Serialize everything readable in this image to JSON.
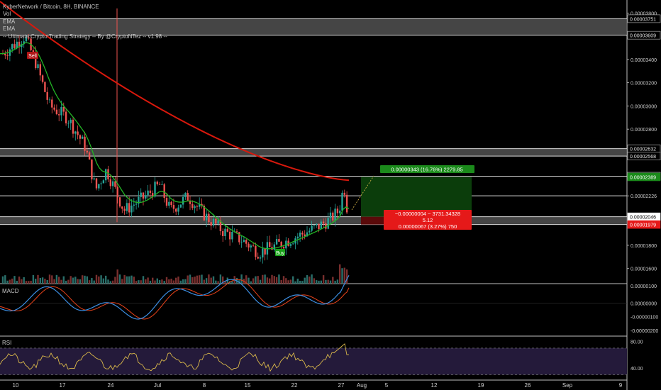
{
  "legend": {
    "symbol_line": "KyberNetwork / Bitcoin, 8H, BINANCE",
    "vol": "Vol",
    "ema1": "EMA",
    "ema2": "EMA",
    "strategy": "-- Ultimate Crypto Trading Strategy -- By @CryptoNTez -- v1.98 --"
  },
  "panes": {
    "macd_label": "MACD",
    "rsi_label": "RSI"
  },
  "colors": {
    "background": "#000000",
    "candle_up": "#26a69a",
    "candle_down": "#ef5350",
    "ema_fast": "#22b525",
    "ema_slow": "#d9180c",
    "macd": "#3c8ee2",
    "signal": "#e8421a",
    "rsi": "#d9b84a",
    "rsi_band": "#241a3a",
    "profit_zone": "#0b3d0b",
    "loss_zone": "#5a0a0a",
    "profit_label_bg": "#1b8a1b",
    "loss_label_bg": "#e51919"
  },
  "chart_data": {
    "type": "candlestick",
    "symbol": "KyberNetwork / Bitcoin",
    "interval": "8H",
    "exchange": "BINANCE",
    "x_ticks": [
      "10",
      "17",
      "24",
      "Jul",
      "8",
      "15",
      "22",
      "27",
      "Aug",
      "5",
      "12",
      "19",
      "26",
      "Sep",
      "9"
    ],
    "price_axis_ticks": [
      "0.00003800",
      "0.00003400",
      "0.00003200",
      "0.00003000",
      "0.00002800",
      "0.00002226",
      "0.00001800",
      "0.00001600"
    ],
    "price_axis_tick_values": [
      3.8e-05,
      3.4e-05,
      3.2e-05,
      3e-05,
      2.8e-05,
      2.226e-05,
      1.8e-05,
      1.6e-05
    ],
    "price_labels": [
      {
        "text": "0.00003751",
        "value": 3.751e-05
      },
      {
        "text": "0.00003609",
        "value": 3.609e-05
      },
      {
        "text": "0.00002632",
        "value": 2.632e-05
      },
      {
        "text": "0.00002568",
        "value": 2.568e-05
      },
      {
        "text": "0.00002395",
        "value": 2.395e-05
      },
      {
        "text": "0.00002389",
        "value": 2.389e-05,
        "highlight": "green"
      },
      {
        "text": "0.00002046",
        "value": 2.046e-05,
        "highlight": "white"
      },
      {
        "text": "0.00001979",
        "value": 1.979e-05,
        "highlight": "red"
      }
    ],
    "horizontal_lines": [
      3.751e-05,
      3.609e-05,
      2.632e-05,
      2.568e-05,
      2.395e-05,
      2.226e-05,
      2.046e-05,
      1.979e-05
    ],
    "zones": [
      [
        3.609e-05,
        3.751e-05
      ],
      [
        2.568e-05,
        2.632e-05
      ],
      [
        1.979e-05,
        2.046e-05
      ]
    ],
    "price_range": [
      1.47e-05,
      3.9e-05
    ],
    "key_prices": {
      "start": 3.45e-05,
      "high": 3.6e-05,
      "mid_low": 2.05e-05,
      "low": 1.74e-05,
      "last": 2.046e-05
    },
    "ema_fast_start": 3.45e-05,
    "ema_slow_start": 3.9e-05,
    "ema_slow_end": 2.36e-05,
    "signals": [
      {
        "text": "Sell",
        "type": "sell"
      },
      {
        "text": "Buy",
        "type": "buy"
      }
    ],
    "position": {
      "profit_label": "0.00000343 (16.76%) 2279.85",
      "loss_label_1": "−0.00000004 ~ 3731.34328",
      "loss_label_2": "5.12",
      "loss_label_3": "0.00000067 (3.27%) 750",
      "entry": 2.046e-05,
      "target": 2.389e-05,
      "stop": 1.979e-05
    },
    "volume": {
      "ticks": [
        "0.00000100"
      ]
    },
    "macd": {
      "ticks": [
        "0.00000100",
        "0.00000000",
        "-0.00000100",
        "-0.00000200"
      ],
      "tick_values": [
        1e-06,
        0.0,
        -1e-06,
        -2e-06
      ],
      "range": [
        -2.4e-06,
        1.4e-06
      ]
    },
    "rsi": {
      "ticks": [
        "80.00",
        "40.00"
      ],
      "tick_values": [
        80,
        40
      ],
      "upper": 70,
      "lower": 30,
      "range": [
        22,
        88
      ]
    }
  }
}
